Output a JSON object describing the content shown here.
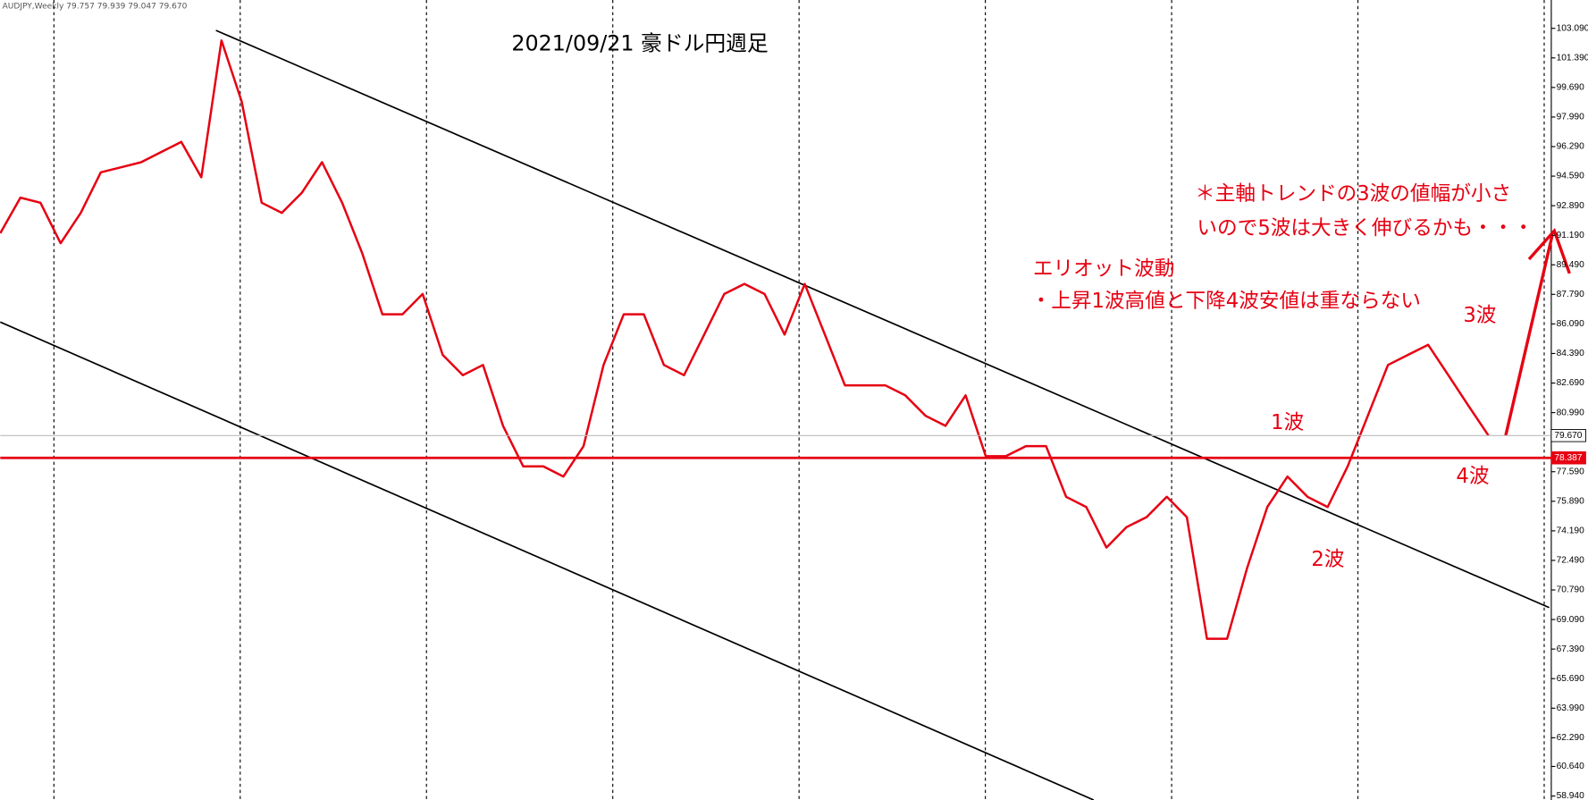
{
  "chart_data": {
    "type": "line",
    "title": "2021/09/21  豪ドル円週足",
    "symbol_info": "AUDJPY,Weekly  79.757 79.939 79.047 79.670",
    "color": "#e60012",
    "values": [
      91.31,
      93.35,
      93.06,
      90.73,
      92.48,
      94.81,
      95.1,
      95.39,
      95.97,
      96.56,
      94.52,
      102.39,
      98.89,
      93.06,
      92.48,
      93.64,
      95.39,
      93.06,
      90.14,
      86.64,
      86.64,
      87.81,
      84.31,
      83.14,
      83.73,
      80.23,
      77.9,
      77.9,
      77.31,
      79.06,
      83.73,
      86.64,
      86.64,
      83.73,
      83.14,
      85.48,
      87.81,
      88.39,
      87.81,
      85.48,
      88.39,
      85.48,
      82.56,
      82.56,
      82.56,
      81.98,
      80.81,
      80.23,
      81.98,
      78.48,
      78.48,
      79.06,
      79.06,
      76.15,
      75.56,
      73.23,
      74.4,
      74.98,
      76.15,
      74.98,
      67.98,
      67.98,
      72.06,
      75.56,
      77.31,
      76.15,
      75.56,
      77.9,
      80.81,
      83.73,
      84.31,
      84.89,
      83.14,
      81.39,
      79.67
    ],
    "ylim": [
      58.71,
      104.72
    ],
    "yticks": [
      {
        "value": 103.09,
        "label": "103.090"
      },
      {
        "value": 101.39,
        "label": "101.390"
      },
      {
        "value": 99.69,
        "label": "99.690"
      },
      {
        "value": 97.99,
        "label": "97.990"
      },
      {
        "value": 96.29,
        "label": "96.290"
      },
      {
        "value": 94.59,
        "label": "94.590"
      },
      {
        "value": 92.89,
        "label": "92.890"
      },
      {
        "value": 91.19,
        "label": "91.190"
      },
      {
        "value": 89.49,
        "label": "89.490"
      },
      {
        "value": 87.79,
        "label": "87.790"
      },
      {
        "value": 86.09,
        "label": "86.090"
      },
      {
        "value": 84.39,
        "label": "84.390"
      },
      {
        "value": 82.69,
        "label": "82.690"
      },
      {
        "value": 80.99,
        "label": "80.990"
      },
      {
        "value": 77.59,
        "label": "77.590"
      },
      {
        "value": 75.89,
        "label": "75.890"
      },
      {
        "value": 74.19,
        "label": "74.190"
      },
      {
        "value": 72.49,
        "label": "72.490"
      },
      {
        "value": 70.79,
        "label": "70.790"
      },
      {
        "value": 69.09,
        "label": "69.090"
      },
      {
        "value": 67.39,
        "label": "67.390"
      },
      {
        "value": 65.69,
        "label": "65.690"
      },
      {
        "value": 63.99,
        "label": "63.990"
      },
      {
        "value": 62.29,
        "label": "62.290"
      },
      {
        "value": 60.64,
        "label": "60.640"
      },
      {
        "value": 58.94,
        "label": "58.940"
      }
    ],
    "price_tags": [
      {
        "value": 79.67,
        "label": "79.670"
      },
      {
        "value": 78.387,
        "label": "78.387"
      }
    ],
    "annotations": [
      "＊主軸トレンドの3波の値幅が小さ",
      "いので5波は大きく伸びるかも・・・",
      "エリオット波動",
      "・上昇1波高値と下降4波安値は重ならない",
      "3波",
      "1波",
      "4波",
      "2波"
    ]
  }
}
